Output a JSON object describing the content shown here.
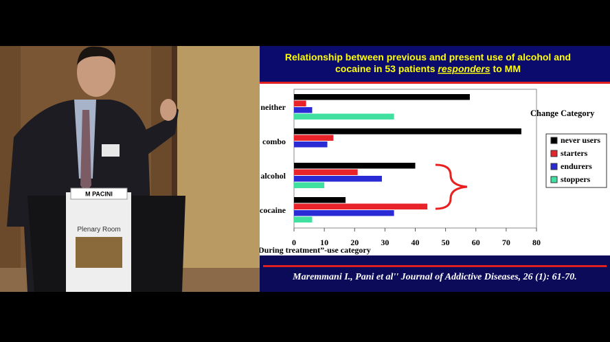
{
  "chart_data": {
    "type": "bar",
    "orientation": "horizontal",
    "title_line1": "Relationship between previous and present use of alcohol and",
    "title_line2": [
      "cocaine in 53 patients",
      "responders",
      "to MM"
    ],
    "categories": [
      "neither",
      "combo",
      "alcohol",
      "cocaine"
    ],
    "series": [
      {
        "name": "never users",
        "color": "#000000",
        "values": [
          58,
          75,
          40,
          17
        ]
      },
      {
        "name": "starters",
        "color": "#e8232a",
        "values": [
          4,
          13,
          21,
          44
        ]
      },
      {
        "name": "endurers",
        "color": "#2b2bd6",
        "values": [
          6,
          11,
          29,
          33
        ]
      },
      {
        "name": "stoppers",
        "color": "#3fe0a0",
        "values": [
          33,
          null,
          10,
          6
        ]
      }
    ],
    "xlim": [
      0,
      80
    ],
    "xticks": [
      0,
      10,
      20,
      30,
      40,
      50,
      60,
      70,
      80
    ],
    "x_label": "During treatment”-use category",
    "legend_title": "Change Category",
    "legend": "right",
    "citation": "Maremmani I., Pani  et al'' Journal of Addictive Diseases, 26 (1): 61-70."
  },
  "photo": {
    "nameplate": "M PACINI",
    "poster": "Plenary Room"
  }
}
